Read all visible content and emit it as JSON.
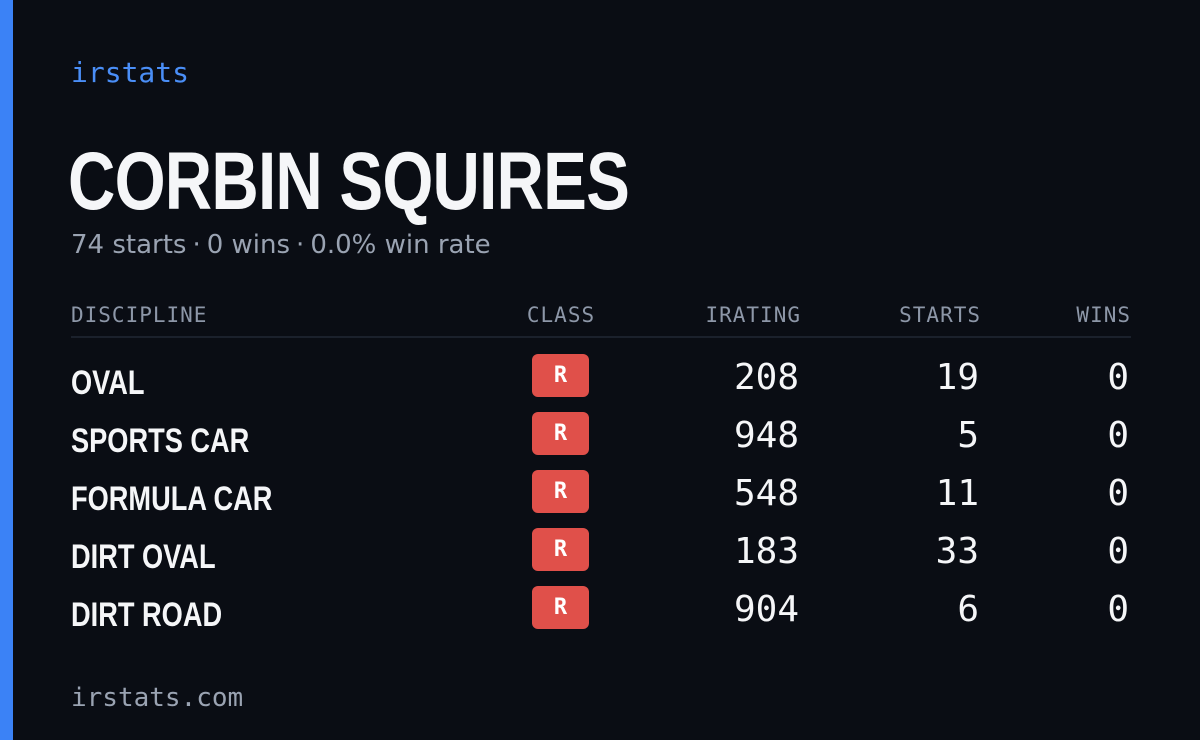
{
  "brand": "irstats",
  "driver": {
    "name": "CORBIN SQUIRES",
    "starts_text": "74 starts",
    "wins_text": "0 wins",
    "win_rate_text": "0.0% win rate",
    "separator": "·"
  },
  "table": {
    "headers": {
      "discipline": "DISCIPLINE",
      "class": "CLASS",
      "irating": "IRATING",
      "starts": "STARTS",
      "wins": "WINS"
    },
    "rows": [
      {
        "discipline": "OVAL",
        "class": "R",
        "irating": "208",
        "starts": "19",
        "wins": "0"
      },
      {
        "discipline": "SPORTS CAR",
        "class": "R",
        "irating": "948",
        "starts": "5",
        "wins": "0"
      },
      {
        "discipline": "FORMULA CAR",
        "class": "R",
        "irating": "548",
        "starts": "11",
        "wins": "0"
      },
      {
        "discipline": "DIRT OVAL",
        "class": "R",
        "irating": "183",
        "starts": "33",
        "wins": "0"
      },
      {
        "discipline": "DIRT ROAD",
        "class": "R",
        "irating": "904",
        "starts": "6",
        "wins": "0"
      }
    ]
  },
  "footer": "irstats.com",
  "colors": {
    "background": "#0a0d14",
    "accent": "#3b82f6",
    "class_r_badge": "#e0504a"
  }
}
